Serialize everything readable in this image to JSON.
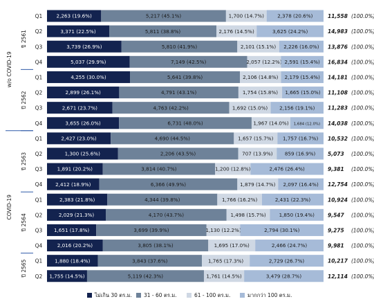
{
  "chart_data": {
    "type": "bar",
    "stacked": "horizontal-100",
    "colors": {
      "s0": "#13234f",
      "s1": "#6e8299",
      "s2": "#cfd8e4",
      "s3": "#a6bbd8",
      "text_dark": "#1a1a1a",
      "text_light": "#ffffff",
      "divider": "#2f5aa8"
    },
    "series_names": [
      "ไม่เกิน 30 ตร.ม.",
      "31 - 60 ตร.ม.",
      "61 - 100 ตร.ม.",
      "มากกว่า 100 ตร.ม."
    ],
    "group_labels": [
      {
        "label": "w/o COVID-19"
      },
      {
        "label": "COVID-19"
      }
    ],
    "years": [
      {
        "label": "ปี 2561",
        "rows": [
          {
            "q": "Q1",
            "v": [
              2263,
              5217,
              1700,
              2378
            ],
            "t": [
              "2,263 (19.6%)",
              "5,217 (45.1%)",
              "1,700 (14.7%)",
              "2,378 (20.6%)"
            ],
            "total": "11,558",
            "pct": "(100.0%)"
          },
          {
            "q": "Q2",
            "v": [
              3371,
              5811,
              2176,
              3625
            ],
            "t": [
              "3,371 (22.5%)",
              "5,811 (38.8%)",
              "2,176 (14.5%)",
              "3,625 (24.2%)"
            ],
            "total": "14,983",
            "pct": "(100.0%)"
          },
          {
            "q": "Q3",
            "v": [
              3739,
              5810,
              2101,
              2226
            ],
            "t": [
              "3,739 (26.9%)",
              "5,810 (41.9%)",
              "2,101 (15.1%)",
              "2,226 (16.0%)"
            ],
            "total": "13,876",
            "pct": "(100.0%)"
          },
          {
            "q": "Q4",
            "v": [
              5037,
              7149,
              2057,
              2591
            ],
            "t": [
              "5,037 (29.9%)",
              "7,149 (42.5%)",
              "2,057 (12.2%)",
              "2,591 (15.4%)"
            ],
            "total": "16,834",
            "pct": "(100.0%)"
          }
        ]
      },
      {
        "label": "ปี 2562",
        "rows": [
          {
            "q": "Q1",
            "v": [
              4255,
              5641,
              2106,
              2179
            ],
            "t": [
              "4,255 (30.0%)",
              "5,641 (39.8%)",
              "2,106 (14.8%)",
              "2,179 (15.4%)"
            ],
            "total": "14,181",
            "pct": "(100.0%)"
          },
          {
            "q": "Q2",
            "v": [
              2899,
              4791,
              1754,
              1665
            ],
            "t": [
              "2,899 (26.1%)",
              "4,791 (43.1%)",
              "1,754 (15.8%)",
              "1,665 (15.0%)"
            ],
            "total": "11,108",
            "pct": "(100.0%)"
          },
          {
            "q": "Q3",
            "v": [
              2671,
              4763,
              1692,
              2156
            ],
            "t": [
              "2,671 (23.7%)",
              "4,763 (42.2%)",
              "1,692 (15.0%)",
              "2,156 (19.1%)"
            ],
            "total": "11,283",
            "pct": "(100.0%)"
          },
          {
            "q": "Q4",
            "v": [
              3655,
              6731,
              1967,
              1684
            ],
            "t": [
              "3,655 (26.0%)",
              "6,731 (48.0%)",
              "1,967 (14.0%)",
              "1,684 (12.0%)"
            ],
            "total": "14,038",
            "pct": "(100.0%)"
          }
        ]
      },
      {
        "label": "ปี 2563",
        "rows": [
          {
            "q": "Q1",
            "v": [
              2427,
              4690,
              1657,
              1757
            ],
            "t": [
              "2,427 (23.0%)",
              "4,690 (44.5%)",
              "1,657 (15.7%)",
              "1,757 (16.7%)"
            ],
            "total": "10,532",
            "pct": "(100.0%)"
          },
          {
            "q": "Q2",
            "v": [
              1300,
              2206,
              707,
              859
            ],
            "t": [
              "1,300 (25.6%)",
              "2,206 (43.5%)",
              "707 (13.9%)",
              "859 (16.9%)"
            ],
            "total": "5,073",
            "pct": "(100.0%)"
          },
          {
            "q": "Q3",
            "v": [
              1891,
              3814,
              1200,
              2476
            ],
            "t": [
              "1,891 (20.2%)",
              "3,814 (40.7%)",
              "1,200 (12.8%)",
              "2,476 (26.4%)"
            ],
            "total": "9,381",
            "pct": "(100.0%)"
          },
          {
            "q": "Q4",
            "v": [
              2412,
              6366,
              1879,
              2097
            ],
            "t": [
              "2,412 (18.9%)",
              "6,366 (49.9%)",
              "1,879 (14.7%)",
              "2,097 (16.4%)"
            ],
            "total": "12,754",
            "pct": "(100.0%)"
          }
        ]
      },
      {
        "label": "ปี 2564",
        "rows": [
          {
            "q": "Q1",
            "v": [
              2383,
              4344,
              1766,
              2431
            ],
            "t": [
              "2,383 (21.8%)",
              "4,344 (39.8%)",
              "1,766 (16.2%)",
              "2,431 (22.3%)"
            ],
            "total": "10,924",
            "pct": "(100.0%)"
          },
          {
            "q": "Q2",
            "v": [
              2029,
              4170,
              1498,
              1850
            ],
            "t": [
              "2,029 (21.3%)",
              "4,170 (43.7%)",
              "1,498 (15.7%)",
              "1,850 (19.4%)"
            ],
            "total": "9,547",
            "pct": "(100.0%)"
          },
          {
            "q": "Q3",
            "v": [
              1651,
              3699,
              1130,
              2794
            ],
            "t": [
              "1,651 (17.8%)",
              "3,699 (39.9%)",
              "1,130 (12.2%)",
              "2,794 (30.1%)"
            ],
            "total": "9,275",
            "pct": "(100.0%)"
          },
          {
            "q": "Q4",
            "v": [
              2016,
              3805,
              1695,
              2466
            ],
            "t": [
              "2,016 (20.2%)",
              "3,805 (38.1%)",
              "1,695 (17.0%)",
              "2,466 (24.7%)"
            ],
            "total": "9,981",
            "pct": "(100.0%)"
          }
        ]
      },
      {
        "label": "ปี 2565",
        "rows": [
          {
            "q": "Q1",
            "v": [
              1880,
              3843,
              1765,
              2729
            ],
            "t": [
              "1,880 (18.4%)",
              "3,843 (37.6%)",
              "1,765 (17.3%)",
              "2,729 (26.7%)"
            ],
            "total": "10,217",
            "pct": "(100.0%)"
          },
          {
            "q": "Q2",
            "v": [
              1755,
              5119,
              1761,
              3479
            ],
            "t": [
              "1,755 (14.5%)",
              "5,119 (42.3%)",
              "1,761 (14.5%)",
              "3,479 (28.7%)"
            ],
            "total": "12,114",
            "pct": "(100.0%)"
          }
        ]
      }
    ]
  }
}
